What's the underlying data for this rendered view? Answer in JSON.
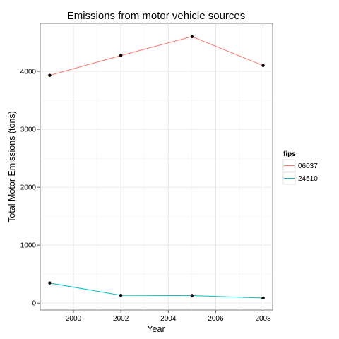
{
  "chart_data": {
    "type": "line",
    "title": "Emissions from motor vehicle sources",
    "xlabel": "Year",
    "ylabel": "Total Motor Emissions (tons)",
    "x": [
      1999,
      2002,
      2005,
      2008
    ],
    "xlim": [
      1998.6,
      2008.4
    ],
    "ylim": [
      -120,
      4830
    ],
    "xticks": [
      2000,
      2002,
      2004,
      2006,
      2008
    ],
    "yticks": [
      0,
      1000,
      2000,
      3000,
      4000
    ],
    "grid": true,
    "legend": {
      "title": "fips",
      "position": "right"
    },
    "series": [
      {
        "name": "06037",
        "color": "#F8766D",
        "values": [
          3931,
          4274,
          4601,
          4101
        ]
      },
      {
        "name": "24510",
        "color": "#00BFC4",
        "values": [
          347,
          134,
          130,
          88
        ]
      }
    ],
    "point_color": "#000000"
  }
}
